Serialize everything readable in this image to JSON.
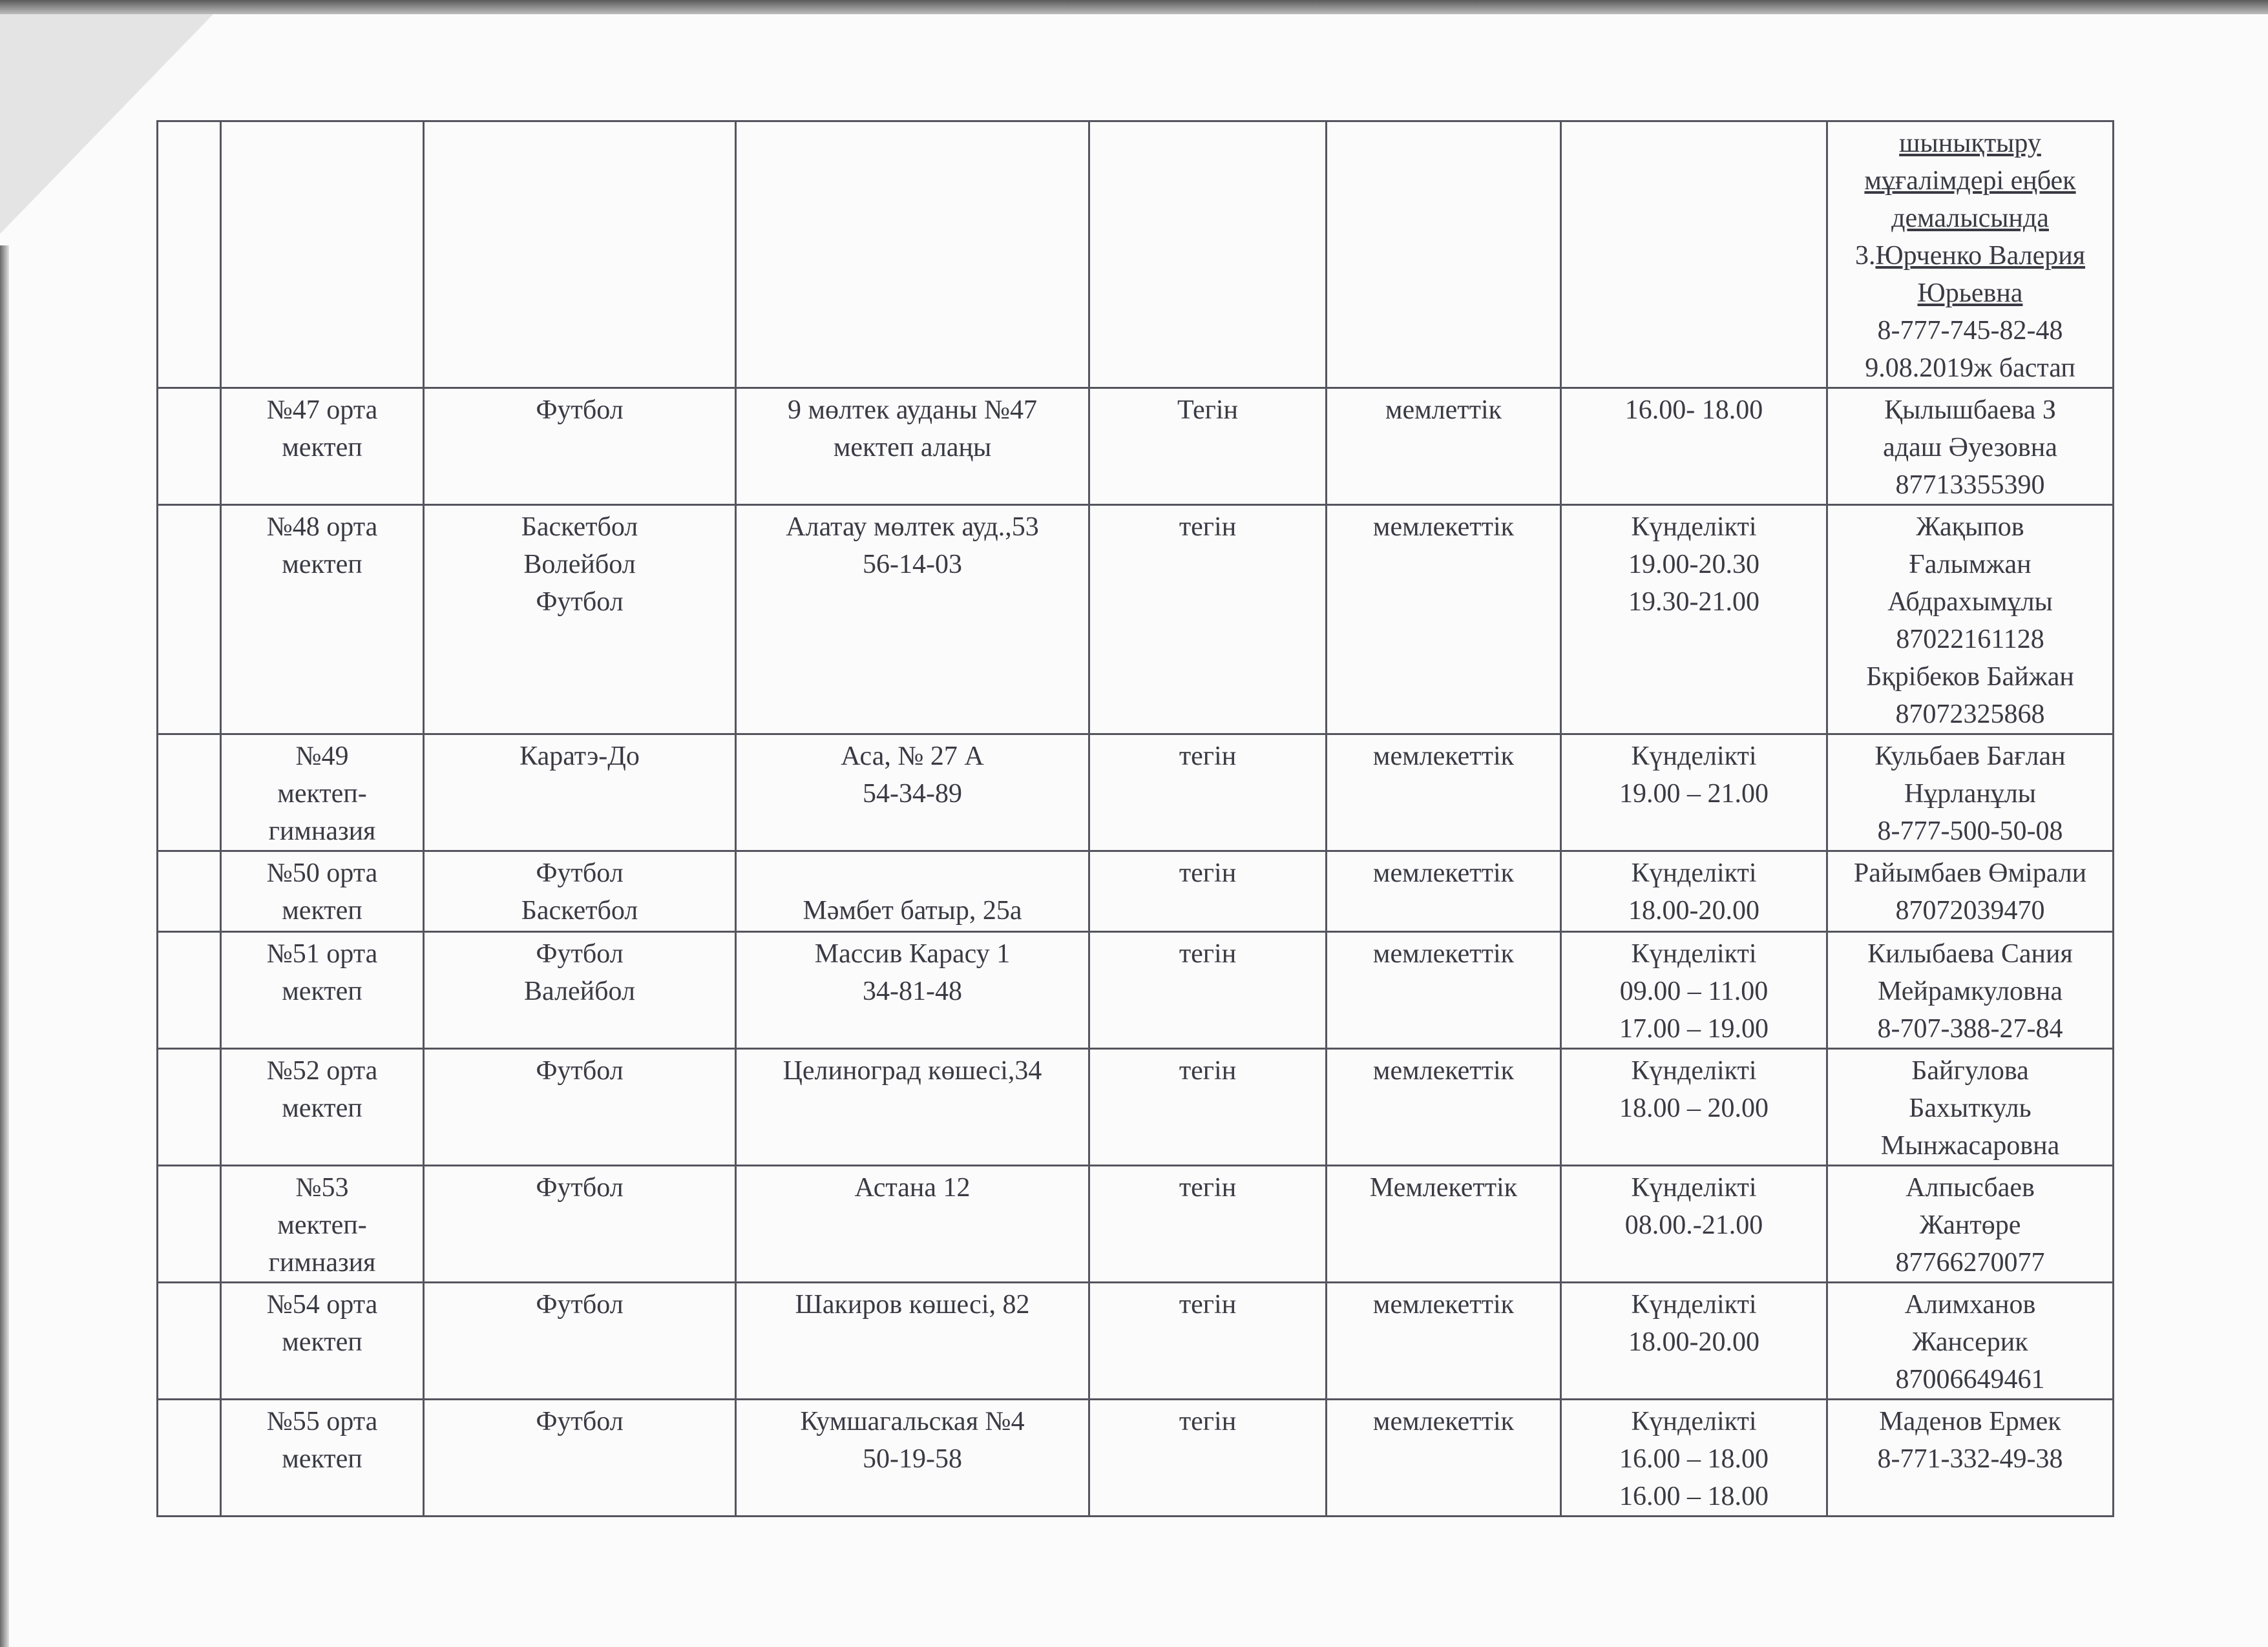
{
  "rows": [
    {
      "num": "",
      "school": "",
      "sport": "",
      "address": "",
      "fee": "",
      "ownership": "",
      "schedule": "",
      "contact_underlined": "шынықтыру\nмұғалімдері еңбек\nдемалысында",
      "contact_prefix": "3.",
      "contact_name": "Юрченко Валерия\nЮрьевна",
      "contact_rest": "8-777-745-82-48\n9.08.2019ж бастап"
    },
    {
      "num": "",
      "school": "№47 орта\nмектеп",
      "sport": "Футбол",
      "address": "9 мөлтек ауданы №47\nмектеп алаңы",
      "fee": "Тегін",
      "ownership": "мемлеттік",
      "schedule": "16.00- 18.00",
      "contact": "Қылышбаева З\nадаш Әуезовна\n87713355390"
    },
    {
      "num": "",
      "school": "№48 орта\nмектеп",
      "sport": "Баскетбол\nВолейбол\nФутбол",
      "address": "Алатау мөлтек ауд.,53\n56-14-03",
      "fee": "тегін",
      "ownership": "мемлекеттік",
      "schedule": "Күнделікті\n19.00-20.30\n19.30-21.00",
      "contact": "Жақыпов\nҒалымжан\nАбдрахымұлы\n87022161128\nБқрібеков Байжан\n87072325868"
    },
    {
      "num": "",
      "school": "№49\nмектеп-\nгимназия",
      "sport": "Каратэ-До",
      "address": "Аса, № 27 А\n54-34-89",
      "fee": "тегін",
      "ownership": "мемлекеттік",
      "schedule": "Күнделікті\n19.00 – 21.00",
      "contact": "Кульбаев Бағлан\nНұрланұлы\n8-777-500-50-08"
    },
    {
      "num": "",
      "school": "№50 орта\nмектеп",
      "sport": "Футбол\nБаскетбол",
      "address": "\nМәмбет батыр, 25а",
      "fee": "тегін",
      "ownership": "мемлекеттік",
      "schedule": "Күнделікті\n18.00-20.00",
      "contact": "Райымбаев Өмірали\n87072039470"
    },
    {
      "num": "",
      "school": "№51 орта\nмектеп",
      "sport": "Футбол\nВалейбол",
      "address": "Массив Карасу 1\n34-81-48",
      "fee": "тегін",
      "ownership": "мемлекеттік",
      "schedule": "Күнделікті\n09.00 – 11.00\n17.00 – 19.00",
      "contact": "Килыбаева Сания\nМейрамкуловна\n8-707-388-27-84"
    },
    {
      "num": "",
      "school": "№52 орта\nмектеп",
      "sport": "Футбол",
      "address": "Целиноград көшесі,34",
      "fee": "тегін",
      "ownership": "мемлекеттік",
      "schedule": "Күнделікті\n18.00 – 20.00",
      "contact": "Байгулова\nБахыткуль\nМынжасаровна"
    },
    {
      "num": "",
      "school": "№53\nмектеп-\nгимназия",
      "sport": "Футбол",
      "address": "Астана 12",
      "fee": "тегін",
      "ownership": "Мемлекеттік",
      "schedule": "Күнделікті\n08.00.-21.00",
      "contact": "Алпысбаев\nЖантөре\n87766270077"
    },
    {
      "num": "",
      "school": "№54 орта\nмектеп",
      "sport": "Футбол",
      "address": "Шакиров көшесі, 82",
      "fee": "тегін",
      "ownership": "мемлекеттік",
      "schedule": "Күнделікті\n18.00-20.00",
      "contact": "Алимханов\nЖансерик\n87006649461"
    },
    {
      "num": "",
      "school": "№55 орта\nмектеп",
      "sport": "Футбол",
      "address": "Кумшагальская №4\n50-19-58",
      "fee": "тегін",
      "ownership": "мемлекеттік",
      "schedule": "Күнделікті\n16.00 – 18.00\n16.00 – 18.00",
      "contact": "Маденов Ермек\n8-771-332-49-38"
    }
  ]
}
